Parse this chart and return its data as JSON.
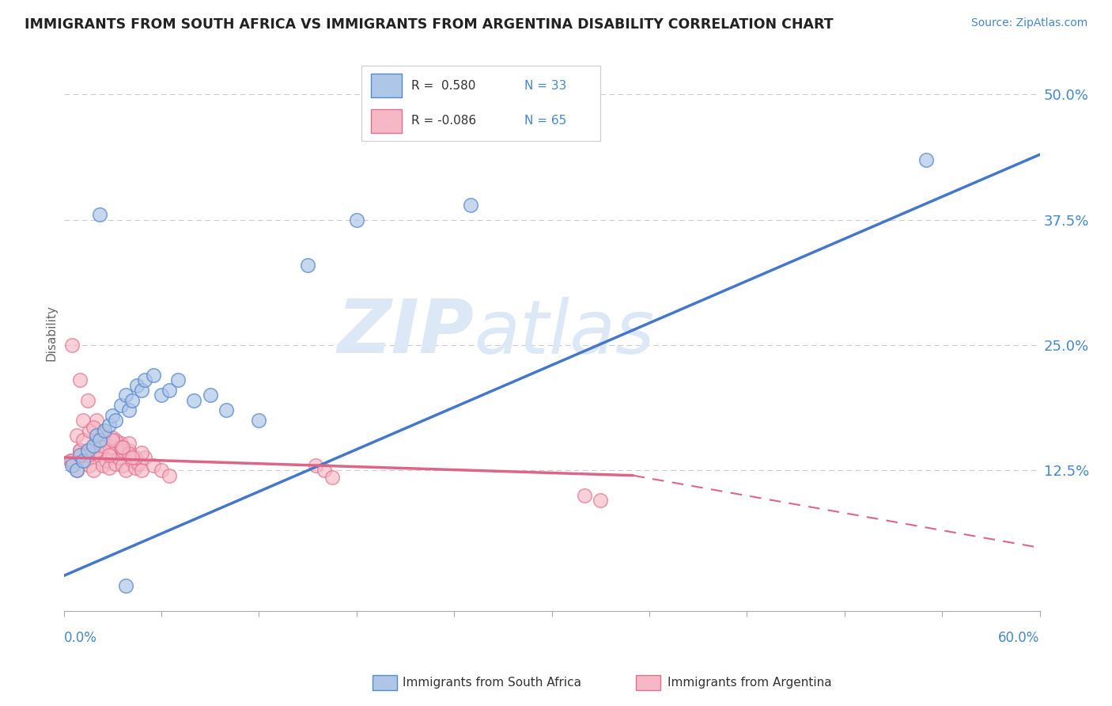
{
  "title": "IMMIGRANTS FROM SOUTH AFRICA VS IMMIGRANTS FROM ARGENTINA DISABILITY CORRELATION CHART",
  "source": "Source: ZipAtlas.com",
  "ylabel": "Disability",
  "ytick_vals": [
    0.0,
    0.125,
    0.25,
    0.375,
    0.5
  ],
  "ytick_labels": [
    "",
    "12.5%",
    "25.0%",
    "37.5%",
    "50.0%"
  ],
  "xlim": [
    0.0,
    0.6
  ],
  "ylim": [
    -0.015,
    0.54
  ],
  "legend_r1": "R =  0.580",
  "legend_n1": "N = 33",
  "legend_r2": "R = -0.086",
  "legend_n2": "N = 65",
  "color_blue": "#aec6e8",
  "color_pink": "#f5b8c4",
  "edge_blue": "#5588cc",
  "edge_pink": "#e07090",
  "trendline_blue": "#4477cc",
  "trendline_pink": "#dd6688",
  "watermark_color": "#dce8f5",
  "sa_x": [
    0.005,
    0.008,
    0.01,
    0.012,
    0.015,
    0.018,
    0.02,
    0.022,
    0.025,
    0.028,
    0.03,
    0.032,
    0.035,
    0.038,
    0.04,
    0.042,
    0.045,
    0.048,
    0.05,
    0.055,
    0.06,
    0.065,
    0.07,
    0.08,
    0.09,
    0.1,
    0.12,
    0.15,
    0.18,
    0.25,
    0.53,
    0.038,
    0.022
  ],
  "sa_y": [
    0.13,
    0.125,
    0.14,
    0.135,
    0.145,
    0.15,
    0.16,
    0.155,
    0.165,
    0.17,
    0.18,
    0.175,
    0.19,
    0.2,
    0.185,
    0.195,
    0.21,
    0.205,
    0.215,
    0.22,
    0.2,
    0.205,
    0.215,
    0.195,
    0.2,
    0.185,
    0.175,
    0.33,
    0.375,
    0.39,
    0.435,
    0.01,
    0.38
  ],
  "arg_x": [
    0.004,
    0.006,
    0.008,
    0.01,
    0.012,
    0.014,
    0.016,
    0.018,
    0.02,
    0.022,
    0.024,
    0.026,
    0.028,
    0.03,
    0.032,
    0.034,
    0.036,
    0.038,
    0.04,
    0.042,
    0.044,
    0.046,
    0.048,
    0.05,
    0.055,
    0.06,
    0.065,
    0.005,
    0.01,
    0.015,
    0.02,
    0.025,
    0.03,
    0.035,
    0.04,
    0.008,
    0.012,
    0.016,
    0.02,
    0.024,
    0.028,
    0.032,
    0.036,
    0.04,
    0.044,
    0.048,
    0.005,
    0.01,
    0.015,
    0.02,
    0.025,
    0.03,
    0.035,
    0.04,
    0.155,
    0.16,
    0.165,
    0.32,
    0.33,
    0.012,
    0.018,
    0.024,
    0.03,
    0.036,
    0.042
  ],
  "arg_y": [
    0.135,
    0.13,
    0.125,
    0.145,
    0.14,
    0.135,
    0.13,
    0.125,
    0.145,
    0.14,
    0.13,
    0.135,
    0.128,
    0.14,
    0.132,
    0.138,
    0.13,
    0.125,
    0.14,
    0.135,
    0.128,
    0.132,
    0.125,
    0.138,
    0.13,
    0.125,
    0.12,
    0.135,
    0.145,
    0.14,
    0.15,
    0.155,
    0.148,
    0.152,
    0.145,
    0.16,
    0.155,
    0.165,
    0.145,
    0.15,
    0.14,
    0.155,
    0.145,
    0.152,
    0.138,
    0.143,
    0.25,
    0.215,
    0.195,
    0.175,
    0.165,
    0.158,
    0.148,
    0.142,
    0.13,
    0.125,
    0.118,
    0.1,
    0.095,
    0.175,
    0.168,
    0.162,
    0.155,
    0.148,
    0.138
  ],
  "blue_line_x": [
    0.0,
    0.6
  ],
  "blue_line_y": [
    0.02,
    0.44
  ],
  "pink_line_x0": 0.0,
  "pink_line_x_solid_end": 0.35,
  "pink_line_x1": 0.6,
  "pink_line_y0": 0.138,
  "pink_line_y_solid_end": 0.12,
  "pink_line_y1": 0.048
}
